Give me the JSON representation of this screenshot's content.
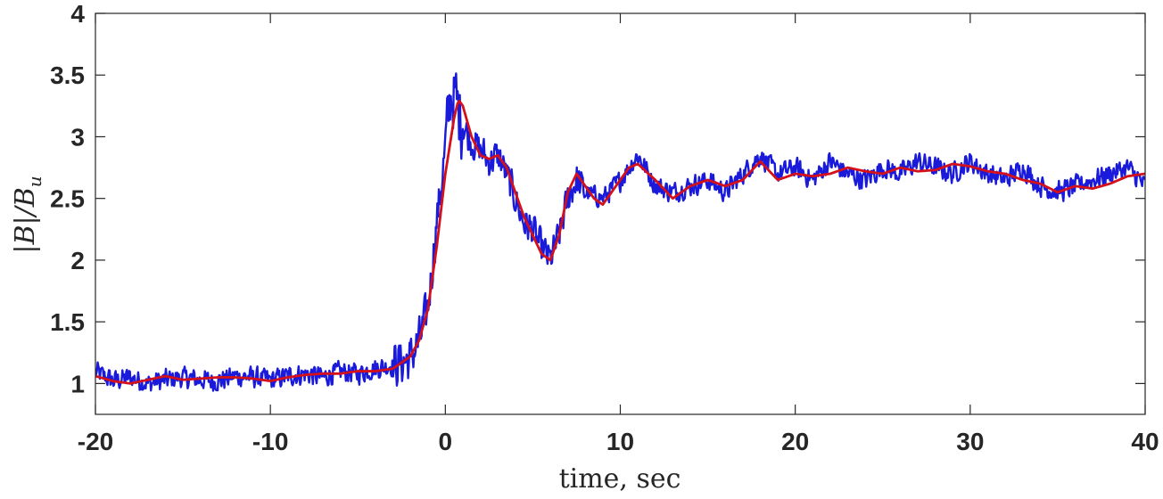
{
  "chart_data": {
    "type": "line",
    "title": "",
    "xlabel": "time, sec",
    "ylabel": "|B|/B_u",
    "xlim": [
      -20,
      40
    ],
    "ylim": [
      0.75,
      4
    ],
    "xticks": [
      -20,
      -10,
      0,
      10,
      20,
      30,
      40
    ],
    "xtick_labels": [
      "-20",
      "-10",
      "0",
      "10",
      "20",
      "30",
      "40"
    ],
    "yticks": [
      1,
      1.5,
      2,
      2.5,
      3,
      3.5,
      4
    ],
    "ytick_labels": [
      "1",
      "1.5",
      "2",
      "2.5",
      "3",
      "3.5",
      "4"
    ],
    "grid": false,
    "legend": "none",
    "series": [
      {
        "color": "#1a1adb",
        "style": "raw-noisy",
        "x": [
          -20,
          -19,
          -18,
          -17,
          -16,
          -15,
          -14,
          -13,
          -12,
          -11,
          -10,
          -9,
          -8,
          -7,
          -6,
          -5,
          -4,
          -3,
          -2,
          -1.5,
          -1,
          -0.5,
          0,
          0.3,
          0.6,
          1,
          1.5,
          2,
          2.5,
          3,
          3.5,
          4,
          4.5,
          5,
          5.5,
          6,
          6.5,
          7,
          7.5,
          8,
          9,
          10,
          11,
          12,
          13,
          14,
          15,
          16,
          17,
          18,
          19,
          20,
          21,
          22,
          23,
          24,
          25,
          26,
          27,
          28,
          29,
          30,
          31,
          32,
          33,
          34,
          35,
          36,
          37,
          38,
          39,
          40
        ],
        "y": [
          1.1,
          1.02,
          1.05,
          1.0,
          1.03,
          1.05,
          1.03,
          1.02,
          1.06,
          1.05,
          1.03,
          1.06,
          1.08,
          1.05,
          1.1,
          1.08,
          1.12,
          1.15,
          1.2,
          1.35,
          1.6,
          2.3,
          2.9,
          3.35,
          3.3,
          3.1,
          2.95,
          2.9,
          2.8,
          2.85,
          2.7,
          2.5,
          2.3,
          2.25,
          2.1,
          2.0,
          2.2,
          2.5,
          2.65,
          2.55,
          2.5,
          2.65,
          2.85,
          2.6,
          2.55,
          2.6,
          2.65,
          2.55,
          2.7,
          2.85,
          2.7,
          2.75,
          2.65,
          2.8,
          2.7,
          2.65,
          2.75,
          2.7,
          2.8,
          2.75,
          2.7,
          2.8,
          2.7,
          2.65,
          2.75,
          2.6,
          2.55,
          2.6,
          2.65,
          2.7,
          2.75,
          2.6
        ],
        "noise_amplitude": 0.1
      },
      {
        "color": "#d4101a",
        "style": "smoothed",
        "x": [
          -20,
          -19,
          -18,
          -17,
          -16,
          -15,
          -14,
          -13,
          -12,
          -11,
          -10,
          -9,
          -8,
          -7,
          -6,
          -5,
          -4,
          -3,
          -2,
          -1.5,
          -1,
          -0.5,
          0,
          0.5,
          0.75,
          1,
          1.5,
          2,
          2.5,
          3,
          3.5,
          4,
          4.5,
          5,
          5.5,
          6,
          6.5,
          7,
          7.5,
          8,
          8.5,
          9,
          9.5,
          10,
          10.5,
          11,
          12,
          13,
          13.5,
          14,
          15,
          16,
          17,
          18,
          19,
          20,
          21,
          22,
          23,
          24,
          25,
          26,
          27,
          28,
          29,
          30,
          31,
          32,
          33,
          34,
          35,
          36,
          37,
          38,
          39,
          40
        ],
        "y": [
          1.06,
          1.02,
          1.0,
          1.03,
          1.06,
          1.03,
          1.04,
          1.05,
          1.05,
          1.04,
          1.02,
          1.05,
          1.07,
          1.08,
          1.08,
          1.1,
          1.1,
          1.12,
          1.22,
          1.35,
          1.6,
          2.1,
          2.7,
          3.15,
          3.3,
          3.25,
          3.0,
          2.85,
          2.82,
          2.85,
          2.75,
          2.55,
          2.35,
          2.2,
          2.05,
          2.0,
          2.2,
          2.55,
          2.7,
          2.6,
          2.5,
          2.45,
          2.55,
          2.65,
          2.75,
          2.78,
          2.65,
          2.5,
          2.55,
          2.6,
          2.65,
          2.6,
          2.65,
          2.8,
          2.65,
          2.7,
          2.68,
          2.7,
          2.75,
          2.72,
          2.7,
          2.75,
          2.72,
          2.73,
          2.78,
          2.76,
          2.72,
          2.7,
          2.65,
          2.62,
          2.55,
          2.6,
          2.58,
          2.62,
          2.68,
          2.7
        ]
      }
    ]
  }
}
